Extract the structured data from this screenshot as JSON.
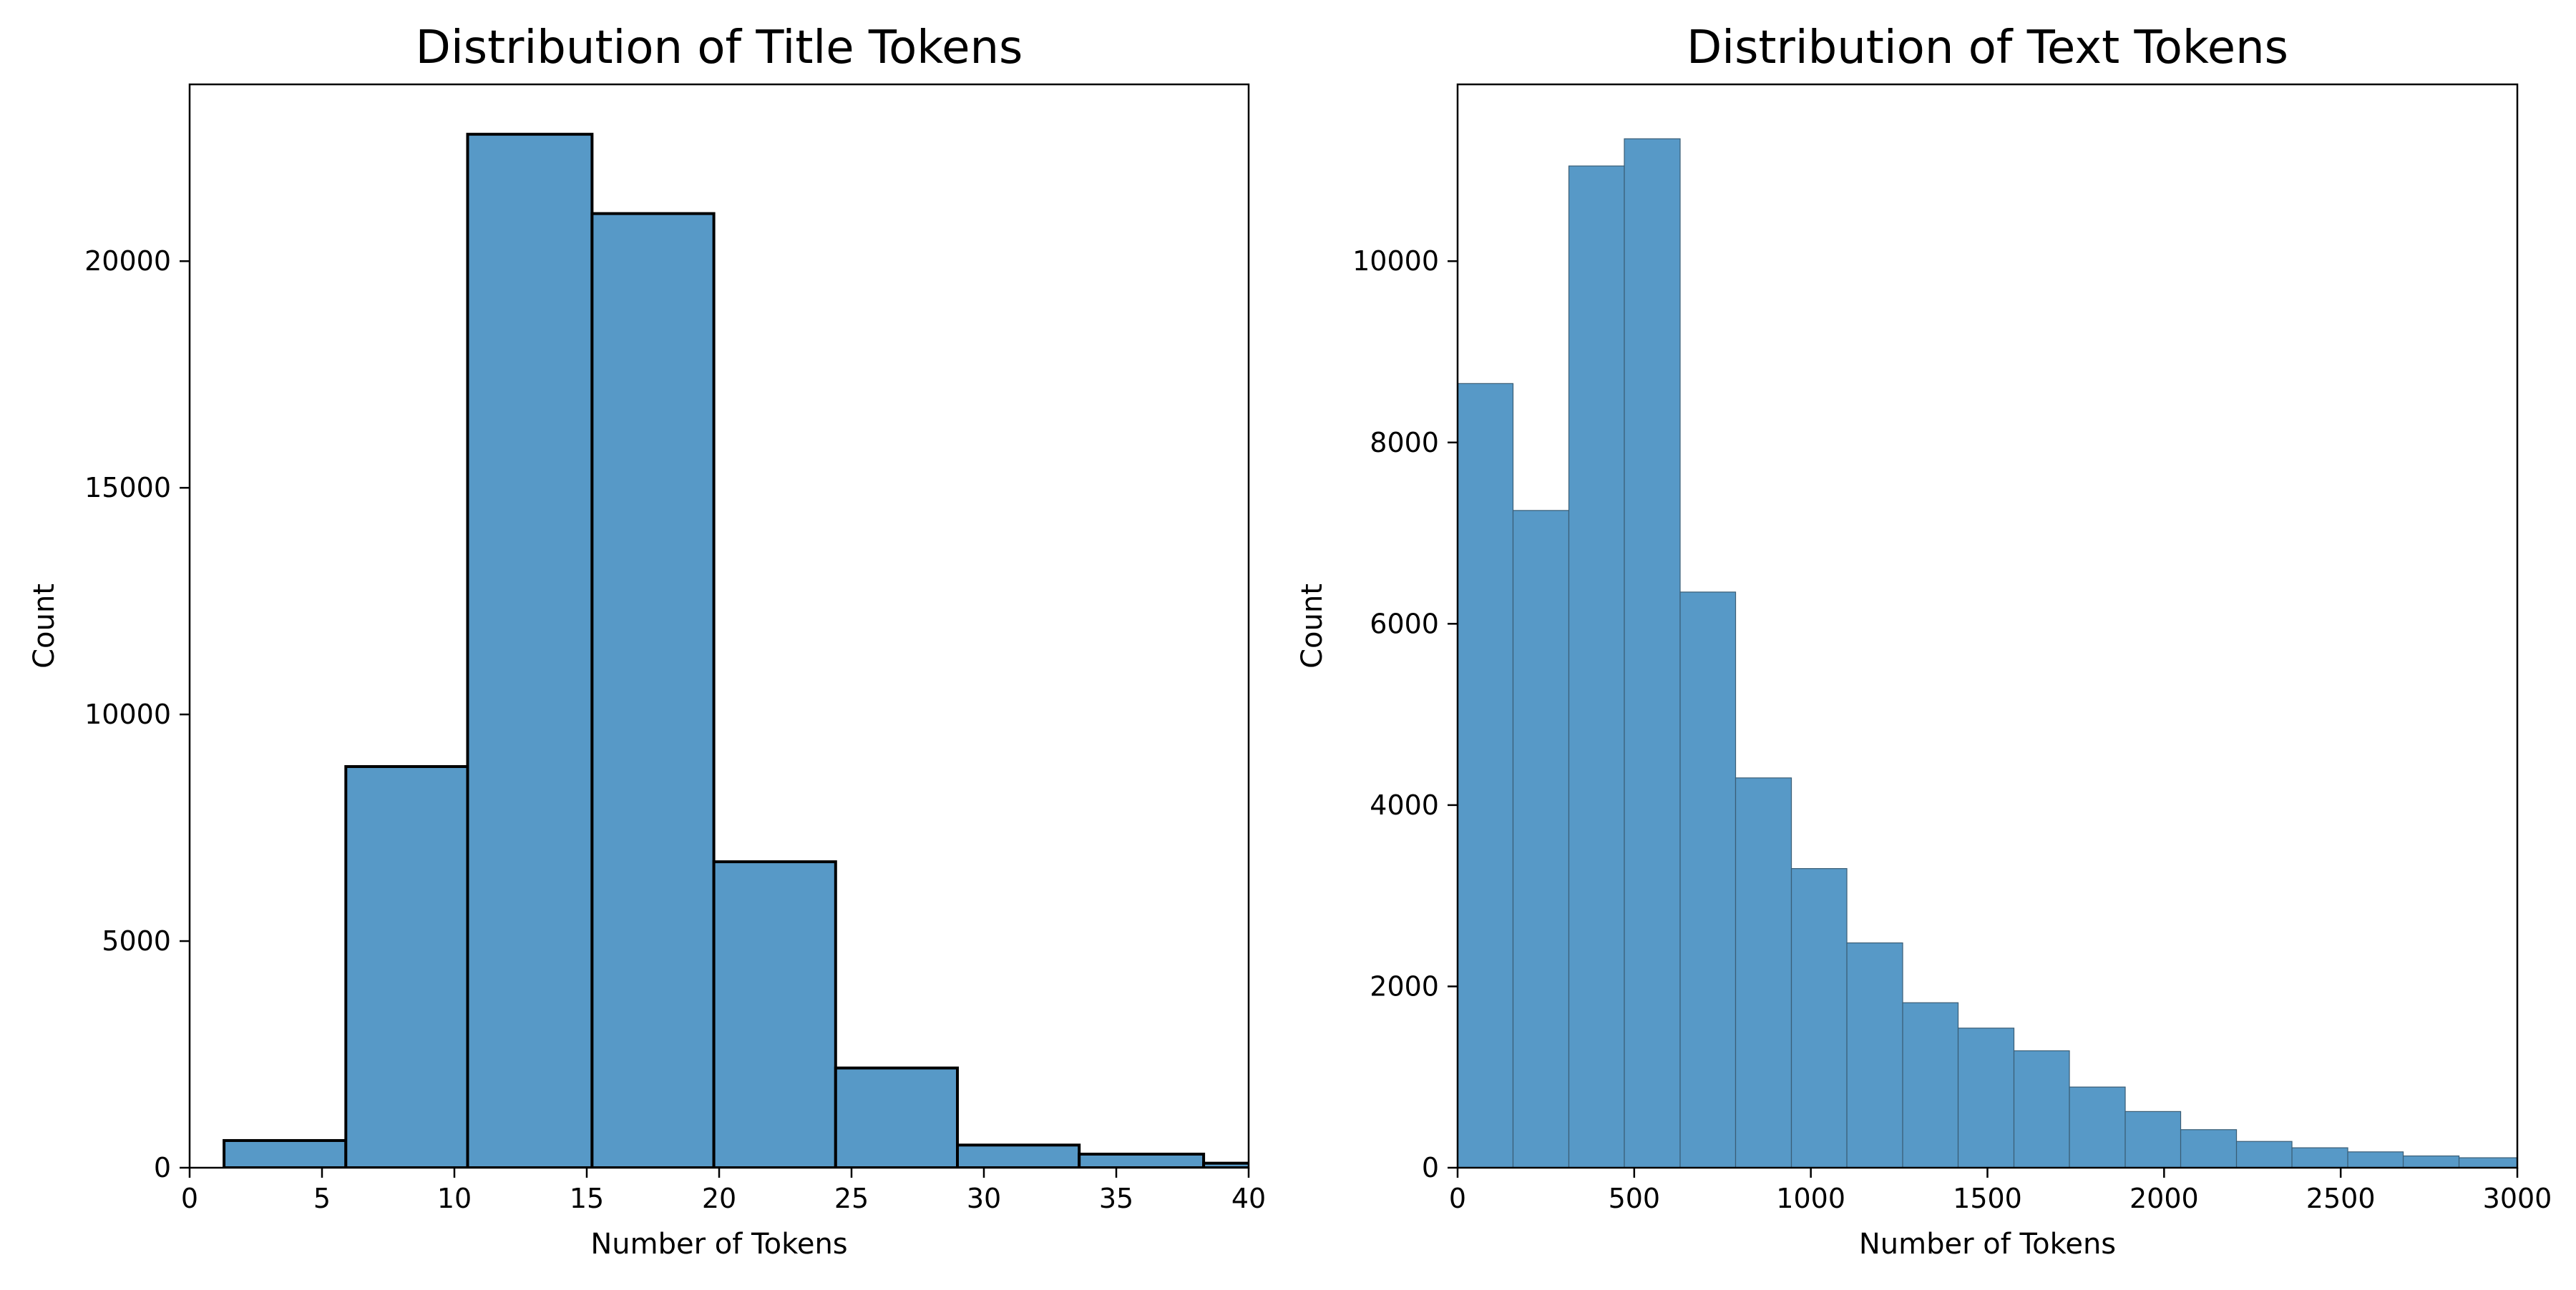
{
  "chart_data": [
    {
      "type": "bar",
      "title": "Distribution of Title Tokens",
      "xlabel": "Number of Tokens",
      "ylabel": "Count",
      "xlim": [
        0,
        40
      ],
      "ylim": [
        0,
        23900
      ],
      "xticks": [
        0,
        5,
        10,
        15,
        20,
        25,
        30,
        35,
        40
      ],
      "yticks": [
        0,
        5000,
        10000,
        15000,
        20000
      ],
      "grid": false,
      "bar_color": "#5799c7",
      "edge_color": "#000000",
      "bins": [
        {
          "x0": 1.3,
          "x1": 5.9,
          "value": 600
        },
        {
          "x0": 5.9,
          "x1": 10.5,
          "value": 8850
        },
        {
          "x0": 10.5,
          "x1": 15.2,
          "value": 22800
        },
        {
          "x0": 15.2,
          "x1": 19.8,
          "value": 21050
        },
        {
          "x0": 19.8,
          "x1": 24.4,
          "value": 6750
        },
        {
          "x0": 24.4,
          "x1": 29.0,
          "value": 2200
        },
        {
          "x0": 29.0,
          "x1": 33.6,
          "value": 500
        },
        {
          "x0": 33.6,
          "x1": 38.3,
          "value": 300
        },
        {
          "x0": 38.3,
          "x1": 42.9,
          "value": 100
        }
      ]
    },
    {
      "type": "bar",
      "title": "Distribution of Text Tokens",
      "xlabel": "Number of Tokens",
      "ylabel": "Count",
      "xlim": [
        0,
        3000
      ],
      "ylim": [
        0,
        11950
      ],
      "xticks": [
        0,
        500,
        1000,
        1500,
        2000,
        2500,
        3000
      ],
      "yticks": [
        0,
        2000,
        4000,
        6000,
        8000,
        10000
      ],
      "grid": false,
      "bar_color": "#5799c7",
      "edge_color": "#3a5d75",
      "bins": [
        {
          "x0": 0,
          "x1": 157,
          "value": 8650
        },
        {
          "x0": 157,
          "x1": 315,
          "value": 7250
        },
        {
          "x0": 315,
          "x1": 472,
          "value": 11050
        },
        {
          "x0": 472,
          "x1": 630,
          "value": 11350
        },
        {
          "x0": 630,
          "x1": 787,
          "value": 6350
        },
        {
          "x0": 787,
          "x1": 945,
          "value": 4300
        },
        {
          "x0": 945,
          "x1": 1102,
          "value": 3300
        },
        {
          "x0": 1102,
          "x1": 1260,
          "value": 2480
        },
        {
          "x0": 1260,
          "x1": 1417,
          "value": 1820
        },
        {
          "x0": 1417,
          "x1": 1575,
          "value": 1540
        },
        {
          "x0": 1575,
          "x1": 1732,
          "value": 1290
        },
        {
          "x0": 1732,
          "x1": 1890,
          "value": 890
        },
        {
          "x0": 1890,
          "x1": 2047,
          "value": 620
        },
        {
          "x0": 2047,
          "x1": 2205,
          "value": 420
        },
        {
          "x0": 2205,
          "x1": 2362,
          "value": 290
        },
        {
          "x0": 2362,
          "x1": 2520,
          "value": 220
        },
        {
          "x0": 2520,
          "x1": 2677,
          "value": 175
        },
        {
          "x0": 2677,
          "x1": 2835,
          "value": 130
        },
        {
          "x0": 2835,
          "x1": 3000,
          "value": 110
        }
      ]
    }
  ]
}
